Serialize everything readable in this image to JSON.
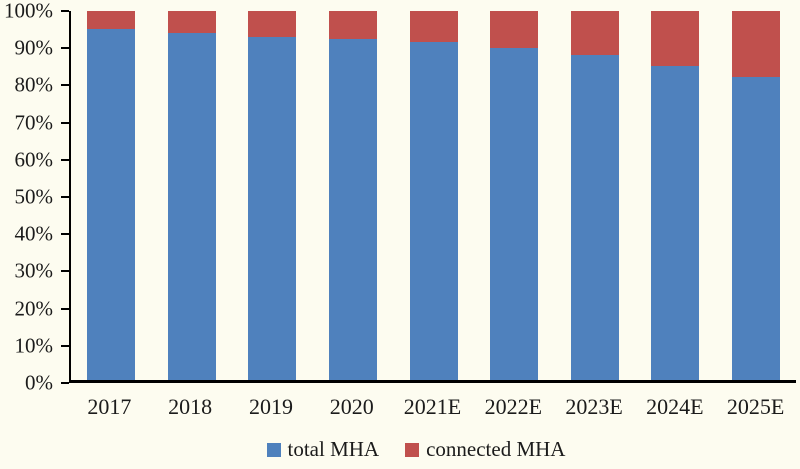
{
  "colors": {
    "background": "#FDFCF0",
    "axis": "#000000",
    "text": "#1B1B1B"
  },
  "chart_data": {
    "type": "bar",
    "stacked": true,
    "percent_stacked": true,
    "title": "",
    "xlabel": "",
    "ylabel": "",
    "unit": "%",
    "ylim": [
      0,
      100
    ],
    "grid": false,
    "legend_position": "bottom",
    "categories": [
      "2017",
      "2018",
      "2019",
      "2020",
      "2021E",
      "2022E",
      "2023E",
      "2024E",
      "2025E"
    ],
    "series": [
      {
        "name": "total MHA",
        "color": "#4F81BD",
        "values": [
          95,
          94,
          93,
          92.5,
          91.5,
          90,
          88,
          85,
          82
        ]
      },
      {
        "name": "connected MHA",
        "color": "#C0504D",
        "values": [
          5,
          6,
          7,
          7.5,
          8.5,
          10,
          12,
          15,
          18
        ]
      }
    ],
    "y_ticks": [
      "100%",
      "90%",
      "80%",
      "70%",
      "60%",
      "50%",
      "40%",
      "30%",
      "20%",
      "10%",
      "0%"
    ]
  }
}
